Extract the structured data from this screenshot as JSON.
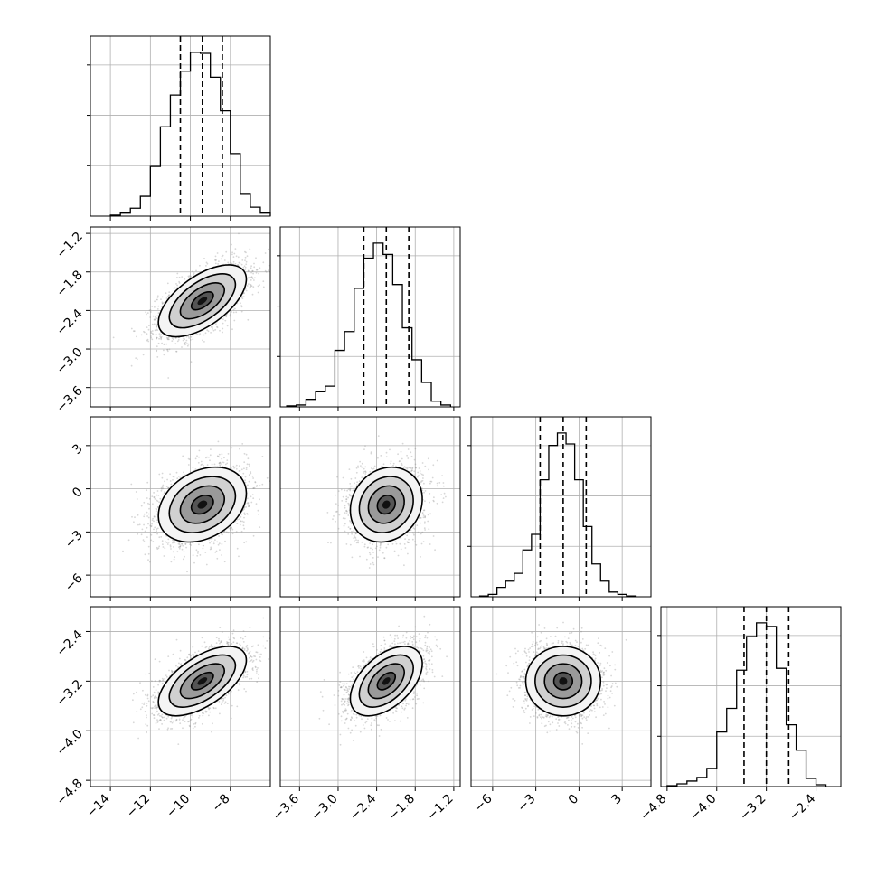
{
  "chart_data": {
    "type": "corner",
    "grid": true,
    "parameters": [
      {
        "range": [
          -15.0,
          -6.0
        ],
        "ticks": [
          -14,
          -12,
          -10,
          -8
        ],
        "tick_labels": [
          "−14",
          "−12",
          "−10",
          "−8"
        ],
        "quantiles": [
          -10.5,
          -9.4,
          -8.4
        ],
        "histogram": {
          "bin_edges": [
            -14.0,
            -13.5,
            -13.0,
            -12.5,
            -12.0,
            -11.5,
            -11.0,
            -10.5,
            -10.0,
            -9.5,
            -9.0,
            -8.5,
            -8.0,
            -7.5,
            -7.0,
            -6.5,
            -6.0
          ],
          "counts": [
            1,
            3,
            8,
            20,
            50,
            90,
            122,
            146,
            165,
            164,
            140,
            106,
            63,
            22,
            9,
            3
          ]
        }
      },
      {
        "range": [
          -3.9,
          -1.1
        ],
        "ticks": [
          -3.6,
          -3.0,
          -2.4,
          -1.8,
          -1.2
        ],
        "tick_labels": [
          "−3.6",
          "−3.0",
          "−2.4",
          "−1.8",
          "−1.2"
        ],
        "quantiles": [
          -2.6,
          -2.25,
          -1.9
        ],
        "histogram": {
          "bin_edges": [
            -3.8,
            -3.65,
            -3.5,
            -3.35,
            -3.2,
            -3.05,
            -2.9,
            -2.75,
            -2.6,
            -2.45,
            -2.3,
            -2.15,
            -2.0,
            -1.85,
            -1.7,
            -1.55,
            -1.4,
            -1.25
          ],
          "counts": [
            1,
            2,
            8,
            16,
            22,
            60,
            80,
            126,
            158,
            174,
            162,
            130,
            84,
            50,
            26,
            6,
            2
          ]
        }
      },
      {
        "range": [
          -7.5,
          5.0
        ],
        "ticks": [
          -6,
          -3,
          0,
          3
        ],
        "tick_labels": [
          "−6",
          "−3",
          "0",
          "3"
        ],
        "quantiles": [
          -2.7,
          -1.1,
          0.5
        ],
        "histogram": {
          "bin_edges": [
            -6.9,
            -6.3,
            -5.7,
            -5.1,
            -4.5,
            -3.9,
            -3.3,
            -2.7,
            -2.1,
            -1.5,
            -0.9,
            -0.3,
            0.3,
            0.9,
            1.5,
            2.1,
            2.7,
            3.3,
            3.9
          ],
          "counts": [
            1,
            3,
            12,
            20,
            30,
            60,
            80,
            150,
            194,
            210,
            196,
            150,
            90,
            42,
            20,
            6,
            3,
            1
          ]
        }
      },
      {
        "range": [
          -4.9,
          -2.0
        ],
        "ticks": [
          -4.8,
          -4.0,
          -3.2,
          -2.4
        ],
        "tick_labels": [
          "−4.8",
          "−4.0",
          "−3.2",
          "−2.4"
        ],
        "quantiles": [
          -3.56,
          -3.2,
          -2.84
        ],
        "histogram": {
          "bin_edges": [
            -4.8,
            -4.64,
            -4.48,
            -4.32,
            -4.16,
            -4.0,
            -3.84,
            -3.68,
            -3.52,
            -3.36,
            -3.2,
            -3.04,
            -2.88,
            -2.72,
            -2.56,
            -2.4,
            -2.24
          ],
          "counts": [
            1,
            3,
            6,
            10,
            20,
            60,
            86,
            128,
            165,
            180,
            176,
            130,
            68,
            40,
            9,
            2
          ]
        }
      }
    ],
    "pairs": [
      {
        "x": 0,
        "y": 1,
        "center": [
          -9.4,
          -2.25
        ],
        "sigma": [
          1.1,
          0.28
        ],
        "rho": 0.6
      },
      {
        "x": 0,
        "y": 2,
        "center": [
          -9.4,
          -1.1
        ],
        "sigma": [
          1.1,
          1.3
        ],
        "rho": 0.3
      },
      {
        "x": 1,
        "y": 2,
        "center": [
          -2.25,
          -1.1
        ],
        "sigma": [
          0.28,
          1.3
        ],
        "rho": 0.15
      },
      {
        "x": 0,
        "y": 3,
        "center": [
          -9.4,
          -3.2
        ],
        "sigma": [
          1.1,
          0.28
        ],
        "rho": 0.6
      },
      {
        "x": 1,
        "y": 3,
        "center": [
          -2.25,
          -3.2
        ],
        "sigma": [
          0.28,
          0.28
        ],
        "rho": 0.5
      },
      {
        "x": 2,
        "y": 3,
        "center": [
          -1.1,
          -3.2
        ],
        "sigma": [
          1.3,
          0.28
        ],
        "rho": 0.0
      }
    ]
  }
}
